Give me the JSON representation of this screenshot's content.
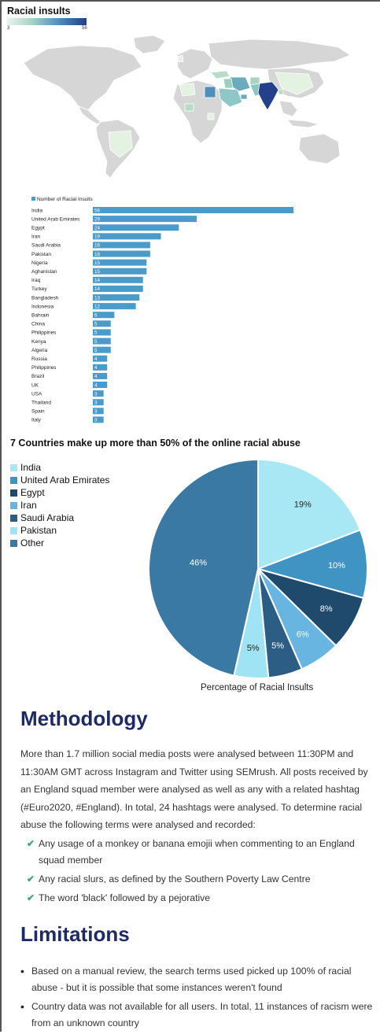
{
  "map": {
    "title": "Racial insults",
    "scale_min": "3",
    "scale_max": "56"
  },
  "bar_chart": {
    "legend": "Number of Racial Insults"
  },
  "pie": {
    "title": "7 Countries make up more than 50% of the online racial abuse",
    "caption": "Percentage of Racial Insults"
  },
  "methodology": {
    "title": "Methodology",
    "paragraph": "More than 1.7 million social media posts were analysed between 11:30PM and 11:30AM GMT across Instagram and Twitter using SEMrush. All posts received by an England squad member were analysed as well as any with a related hashtag (#Euro2020, #England). In total, 24 hashtags were analysed. To determine racial abuse the following terms were analysed and recorded:",
    "items": [
      "Any usage of a monkey or banana emojii when commenting to an England squad member",
      "Any racial slurs, as defined by the Southern Poverty Law Centre",
      "The word 'black' followed by a pejorative"
    ]
  },
  "limitations": {
    "title": "Limitations",
    "items": [
      "Based on a manual review, the search terms used picked up 100% of racial abuse - but it is possible that some instances weren't found",
      "Country data was not available for all users. In total, 11 instances of racism were from an unknown country"
    ]
  },
  "colors": {
    "bar": "#4a9bc9",
    "title_navy": "#1d2a66",
    "check_green": "#3aa978"
  },
  "chart_data": [
    {
      "type": "bar",
      "orientation": "horizontal",
      "legend": "Number of Racial Insults",
      "categories": [
        "India",
        "United Arab Emirates",
        "Egypt",
        "Iran",
        "Saudi Arabia",
        "Pakistan",
        "Nigeria",
        "Aghanistan",
        "Iraq",
        "Turkey",
        "Bangladesh",
        "Indonesia",
        "Bahrain",
        "China",
        "Philippines",
        "Kenya",
        "Algeria",
        "Russia",
        "Philippines",
        "Brazil",
        "UK",
        "USA",
        "Thailand",
        "Spain",
        "Italy"
      ],
      "values": [
        56,
        29,
        24,
        19,
        16,
        16,
        15,
        15,
        14,
        14,
        13,
        12,
        6,
        5,
        5,
        5,
        5,
        4,
        4,
        4,
        4,
        3,
        3,
        3,
        3
      ],
      "xlim": [
        0,
        56
      ]
    },
    {
      "type": "pie",
      "title": "7 Countries make up more than 50% of the online racial abuse",
      "caption": "Percentage of Racial Insults",
      "labels": [
        "India",
        "United Arab Emirates",
        "Egypt",
        "Iran",
        "Saudi Arabia",
        "Pakistan",
        "Other"
      ],
      "values": [
        19,
        10,
        8,
        6,
        5,
        5,
        46
      ],
      "colors": [
        "#a8e8f5",
        "#3f94c4",
        "#1f4a6b",
        "#67b5e0",
        "#2c5d84",
        "#9fe3f4",
        "#3b79a5"
      ],
      "legend_position": "top-left"
    }
  ]
}
